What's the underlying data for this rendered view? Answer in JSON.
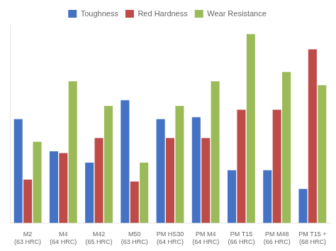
{
  "chart_data": {
    "type": "bar",
    "categories": [
      "M2\n(63 HRC)",
      "M4\n(64 HRC)",
      "M42\n(65 HRC)",
      "M50\n(63 HRC)",
      "PM HS30\n(64 HRC)",
      "PM M4\n(64 HRC)",
      "PM T15\n(66 HRC)",
      "PM M48\n(66 HRC)",
      "PM T15 +\n(68 HRC)"
    ],
    "series": [
      {
        "name": "Toughness",
        "color": "#4472C4",
        "values": [
          5.5,
          3.8,
          3.2,
          6.5,
          5.5,
          5.6,
          2.8,
          2.8,
          1.8
        ]
      },
      {
        "name": "Red Hardness",
        "color": "#BE4B48",
        "values": [
          2.3,
          3.7,
          4.5,
          2.2,
          4.5,
          4.5,
          6.0,
          6.0,
          9.2
        ]
      },
      {
        "name": "Wear Resistance",
        "color": "#9BBB59",
        "values": [
          4.3,
          7.5,
          6.2,
          3.2,
          6.2,
          7.5,
          10.0,
          8.0,
          7.3
        ]
      }
    ],
    "ylim": [
      0,
      10.5
    ],
    "grid": false,
    "legend": "top",
    "tick_labels": "x"
  }
}
